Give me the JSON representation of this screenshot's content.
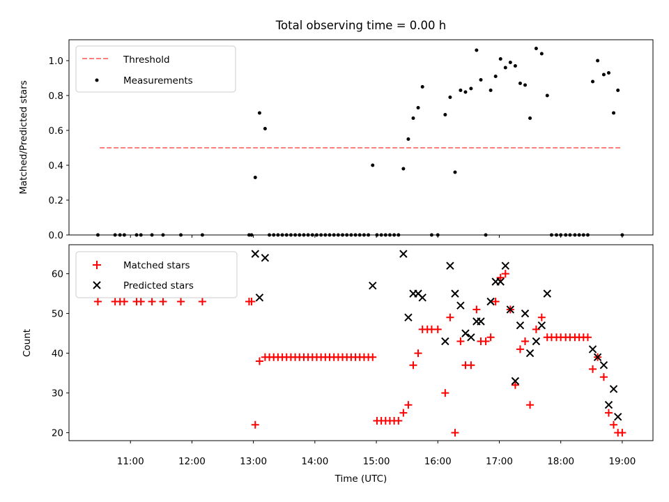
{
  "title": "Total observing time = 0.00 h",
  "colors": {
    "threshold": "#ff7f7f",
    "measurement": "#000000",
    "matched": "#ff0000",
    "predicted": "#000000"
  },
  "chart_data": [
    {
      "type": "scatter",
      "ylabel": "Matched/Predicted stars",
      "ylim": [
        0,
        1.12
      ],
      "yticks": [
        "0.0",
        "0.2",
        "0.4",
        "0.6",
        "0.8",
        "1.0"
      ],
      "legend": {
        "placement": "top-left",
        "entries": [
          "Threshold",
          "Measurements"
        ]
      },
      "threshold": {
        "name": "Threshold",
        "value": 0.5,
        "x_range": [
          10.5,
          19.0
        ]
      },
      "series": [
        {
          "name": "Measurements",
          "x": [
            10.47,
            10.75,
            10.83,
            10.9,
            11.1,
            11.17,
            11.35,
            11.53,
            11.82,
            12.17,
            12.93,
            12.97,
            13.03,
            13.1,
            13.19,
            13.26,
            13.33,
            13.4,
            13.47,
            13.54,
            13.61,
            13.68,
            13.75,
            13.82,
            13.89,
            13.96,
            14.03,
            14.1,
            14.17,
            14.24,
            14.31,
            14.38,
            14.45,
            14.52,
            14.59,
            14.66,
            14.73,
            14.8,
            14.87,
            14.94,
            15.01,
            15.08,
            15.15,
            15.22,
            15.29,
            15.36,
            15.44,
            15.52,
            15.6,
            15.68,
            15.75,
            15.9,
            16.0,
            16.12,
            16.2,
            16.28,
            16.37,
            16.45,
            16.54,
            16.63,
            16.7,
            16.78,
            16.86,
            16.94,
            17.02,
            17.1,
            17.18,
            17.26,
            17.34,
            17.42,
            17.5,
            17.6,
            17.69,
            17.78,
            17.85,
            17.93,
            18.0,
            18.08,
            18.15,
            18.23,
            18.3,
            18.37,
            18.44,
            18.52,
            18.6,
            18.7,
            18.78,
            18.86,
            18.93,
            19.0
          ],
          "y": [
            0,
            0,
            0,
            0,
            0,
            0,
            0,
            0,
            0,
            0,
            0,
            0,
            0.33,
            0.7,
            0.61,
            0,
            0,
            0,
            0,
            0,
            0,
            0,
            0,
            0,
            0,
            0,
            0,
            0,
            0,
            0,
            0,
            0,
            0,
            0,
            0,
            0,
            0,
            0,
            0,
            0.4,
            0,
            0,
            0,
            0,
            0,
            0,
            0.38,
            0.55,
            0.67,
            0.73,
            0.85,
            0,
            0,
            0.69,
            0.79,
            0.36,
            0.83,
            0.82,
            0.84,
            1.06,
            0.89,
            0,
            0.83,
            0.91,
            1.01,
            0.96,
            0.99,
            0.97,
            0.87,
            0.86,
            0.67,
            1.07,
            1.04,
            0.8,
            0,
            0,
            0,
            0,
            0,
            0,
            0,
            0,
            0,
            0.88,
            1.0,
            0.92,
            0.93,
            0.7,
            0.83,
            0
          ]
        }
      ]
    },
    {
      "type": "scatter",
      "ylabel": "Count",
      "xlabel": "Time (UTC)",
      "xlim": [
        10.0,
        19.5
      ],
      "ylim": [
        18,
        67.3
      ],
      "xticks": [
        "11:00",
        "12:00",
        "13:00",
        "14:00",
        "15:00",
        "16:00",
        "17:00",
        "18:00",
        "19:00"
      ],
      "yticks": [
        "20",
        "30",
        "40",
        "50",
        "60"
      ],
      "legend": {
        "placement": "top-left",
        "entries": [
          "Matched stars",
          "Predicted stars"
        ]
      },
      "series": [
        {
          "name": "Matched stars",
          "x": [
            10.47,
            10.75,
            10.83,
            10.9,
            11.1,
            11.17,
            11.35,
            11.53,
            11.82,
            12.17,
            12.93,
            12.97,
            13.03,
            13.1,
            13.19,
            13.26,
            13.33,
            13.4,
            13.47,
            13.54,
            13.61,
            13.68,
            13.75,
            13.82,
            13.89,
            13.96,
            14.03,
            14.1,
            14.17,
            14.24,
            14.31,
            14.38,
            14.45,
            14.52,
            14.59,
            14.66,
            14.73,
            14.8,
            14.87,
            14.94,
            15.01,
            15.08,
            15.15,
            15.22,
            15.29,
            15.36,
            15.44,
            15.52,
            15.6,
            15.68,
            15.75,
            15.83,
            15.9,
            16.0,
            16.12,
            16.2,
            16.28,
            16.37,
            16.45,
            16.54,
            16.63,
            16.7,
            16.78,
            16.86,
            16.94,
            17.02,
            17.1,
            17.18,
            17.26,
            17.34,
            17.42,
            17.5,
            17.6,
            17.69,
            17.78,
            17.85,
            17.93,
            18.0,
            18.08,
            18.15,
            18.23,
            18.3,
            18.37,
            18.44,
            18.52,
            18.6,
            18.7,
            18.78,
            18.86,
            18.93,
            19.0
          ],
          "y": [
            53,
            53,
            53,
            53,
            53,
            53,
            53,
            53,
            53,
            53,
            53,
            53,
            22,
            38,
            39,
            39,
            39,
            39,
            39,
            39,
            39,
            39,
            39,
            39,
            39,
            39,
            39,
            39,
            39,
            39,
            39,
            39,
            39,
            39,
            39,
            39,
            39,
            39,
            39,
            39,
            23,
            23,
            23,
            23,
            23,
            23,
            25,
            27,
            37,
            40,
            46,
            46,
            46,
            46,
            30,
            49,
            20,
            43,
            37,
            37,
            51,
            43,
            43,
            44,
            53,
            59,
            60,
            51,
            32,
            41,
            43,
            27,
            46,
            49,
            44,
            44,
            44,
            44,
            44,
            44,
            44,
            44,
            44,
            44,
            36,
            39,
            34,
            25,
            22,
            20,
            20
          ]
        },
        {
          "name": "Predicted stars",
          "x": [
            13.03,
            13.1,
            13.19,
            14.94,
            15.44,
            15.52,
            15.6,
            15.68,
            15.75,
            16.12,
            16.2,
            16.28,
            16.37,
            16.45,
            16.54,
            16.63,
            16.7,
            16.86,
            16.94,
            17.02,
            17.1,
            17.18,
            17.26,
            17.34,
            17.42,
            17.5,
            17.6,
            17.69,
            17.78,
            18.52,
            18.6,
            18.7,
            18.78,
            18.86,
            18.93
          ],
          "y": [
            65,
            54,
            64,
            57,
            65,
            49,
            55,
            55,
            54,
            43,
            62,
            55,
            52,
            45,
            44,
            48,
            48,
            53,
            58,
            58,
            62,
            51,
            33,
            47,
            50,
            40,
            43,
            47,
            55,
            41,
            39,
            37,
            27,
            31,
            24
          ]
        }
      ]
    }
  ]
}
